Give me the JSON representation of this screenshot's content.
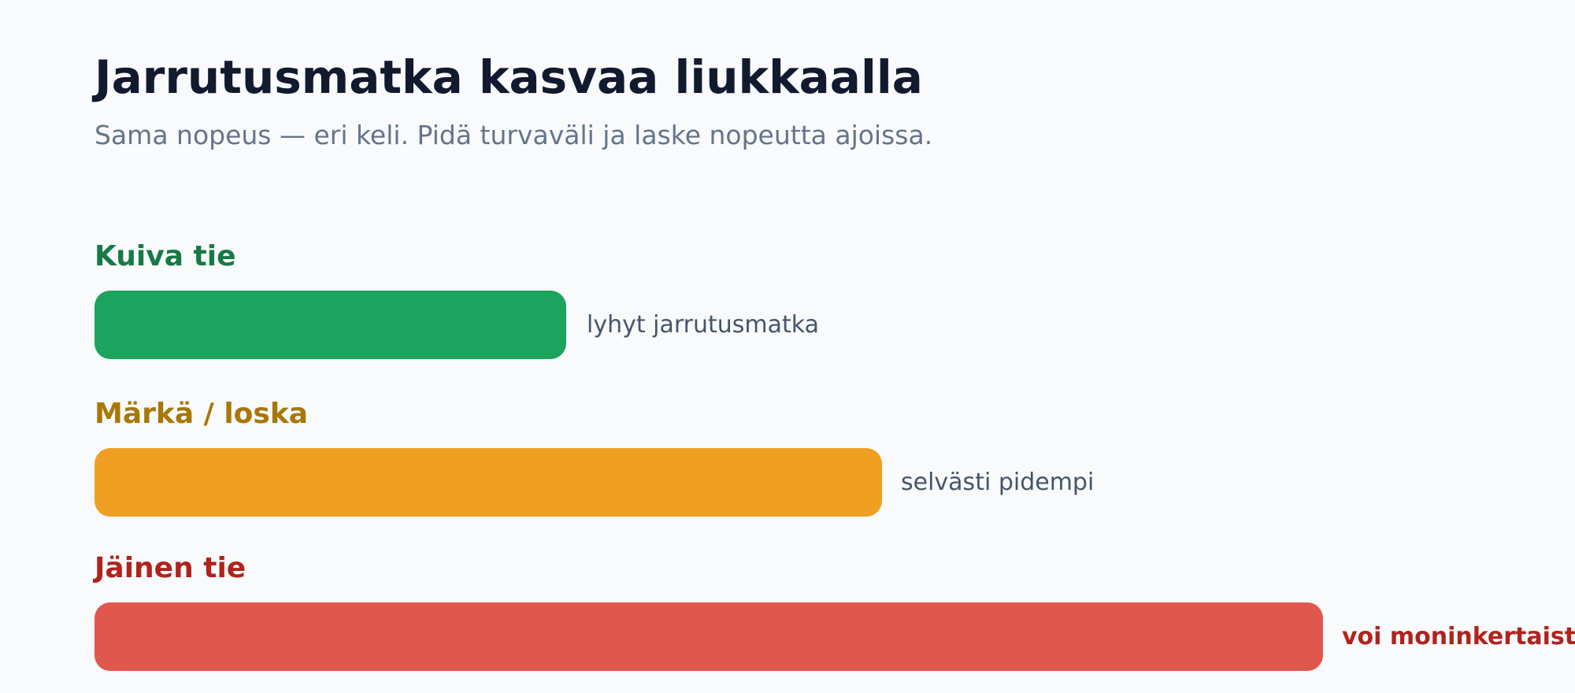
{
  "header": {
    "title": "Jarrutusmatka kasvaa liukkaalla",
    "subtitle": "Sama nopeus — eri keli. Pidä turvaväli ja laske nopeutta ajoissa."
  },
  "rows": [
    {
      "label": "Kuiva tie",
      "note": "lyhyt jarrutusmatka"
    },
    {
      "label": "Märkä / loska",
      "note": "selvästi pidempi"
    },
    {
      "label": "Jäinen tie",
      "note": "voi moninkertaist"
    }
  ]
}
